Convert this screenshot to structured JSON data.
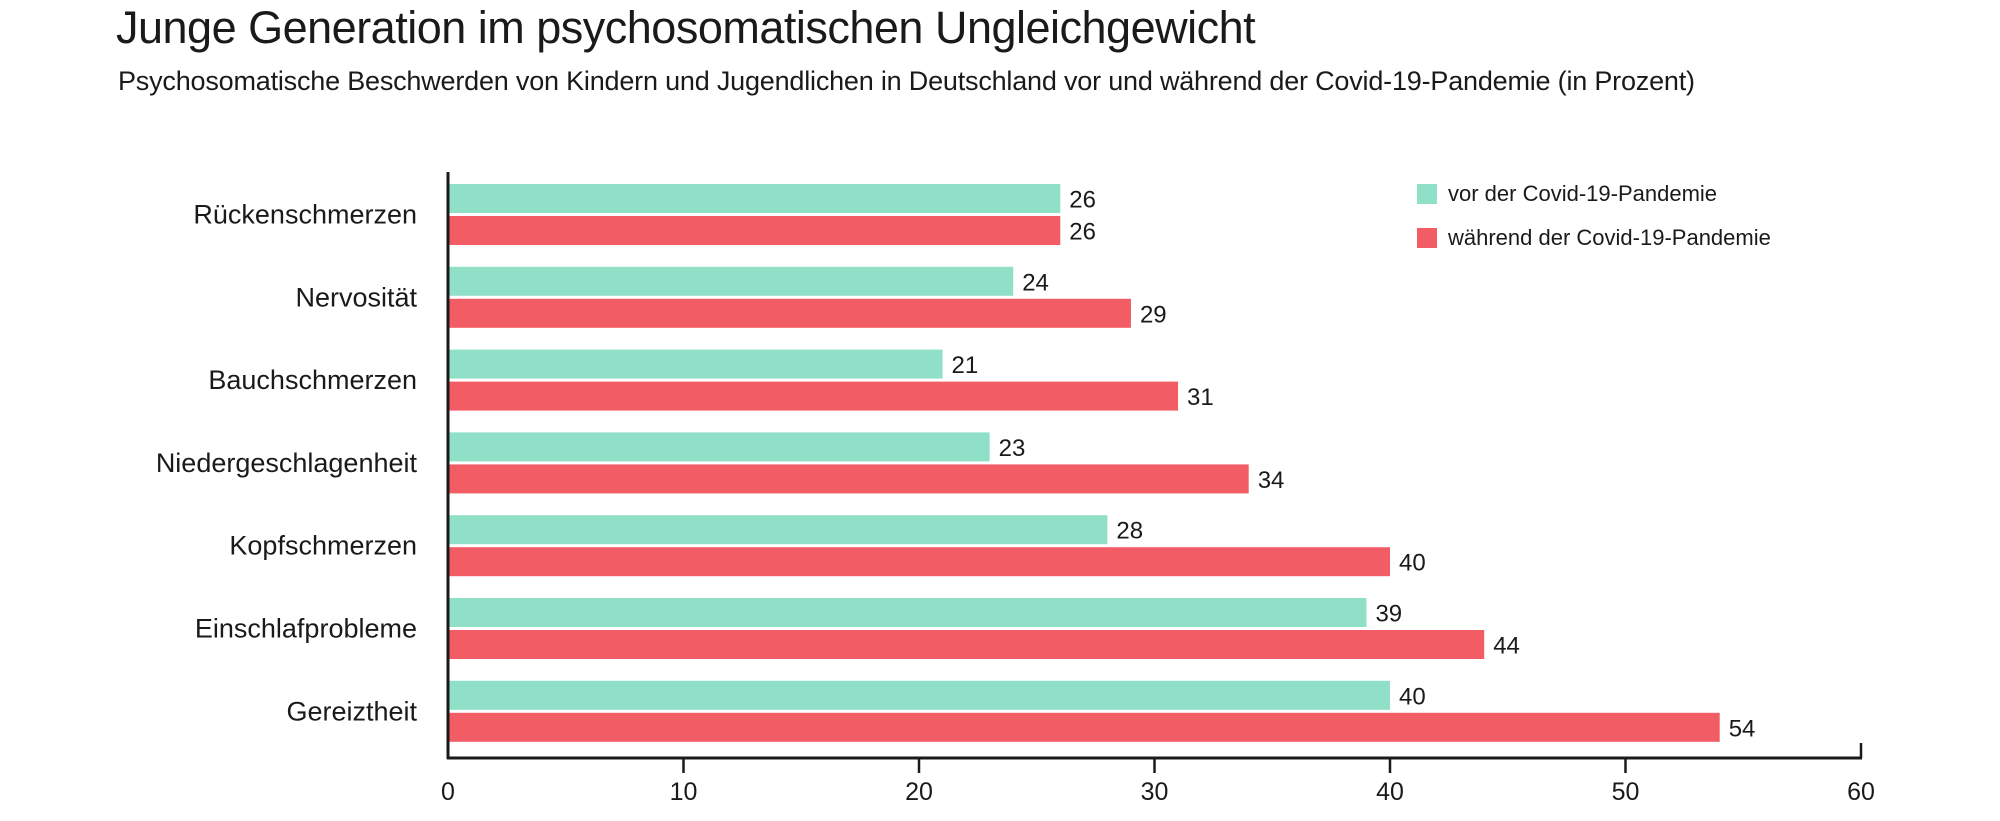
{
  "chart_data": {
    "type": "bar",
    "orientation": "horizontal",
    "title": "Junge Generation im psychosomatischen Ungleichgewicht",
    "subtitle": "Psychosomatische Beschwerden von Kindern und Jugendlichen in Deutschland vor und während der Covid-19-Pandemie (in Prozent)",
    "categories": [
      "Rückenschmerzen",
      "Nervosität",
      "Bauchschmerzen",
      "Niedergeschlagenheit",
      "Kopfschmerzen",
      "Einschlafprobleme",
      "Gereiztheit"
    ],
    "series": [
      {
        "name": "vor der Covid-19-Pandemie",
        "color": "#90E0C8",
        "values": [
          26,
          24,
          21,
          23,
          28,
          39,
          40
        ]
      },
      {
        "name": "während der Covid-19-Pandemie",
        "color": "#F25C64",
        "values": [
          26,
          29,
          31,
          34,
          40,
          44,
          54
        ]
      }
    ],
    "xlim": [
      0,
      60
    ],
    "xticks": [
      "0",
      "10",
      "20",
      "30",
      "40",
      "50",
      "60"
    ],
    "xlabel": "",
    "ylabel": "",
    "legend": "top-right",
    "grid": false
  }
}
